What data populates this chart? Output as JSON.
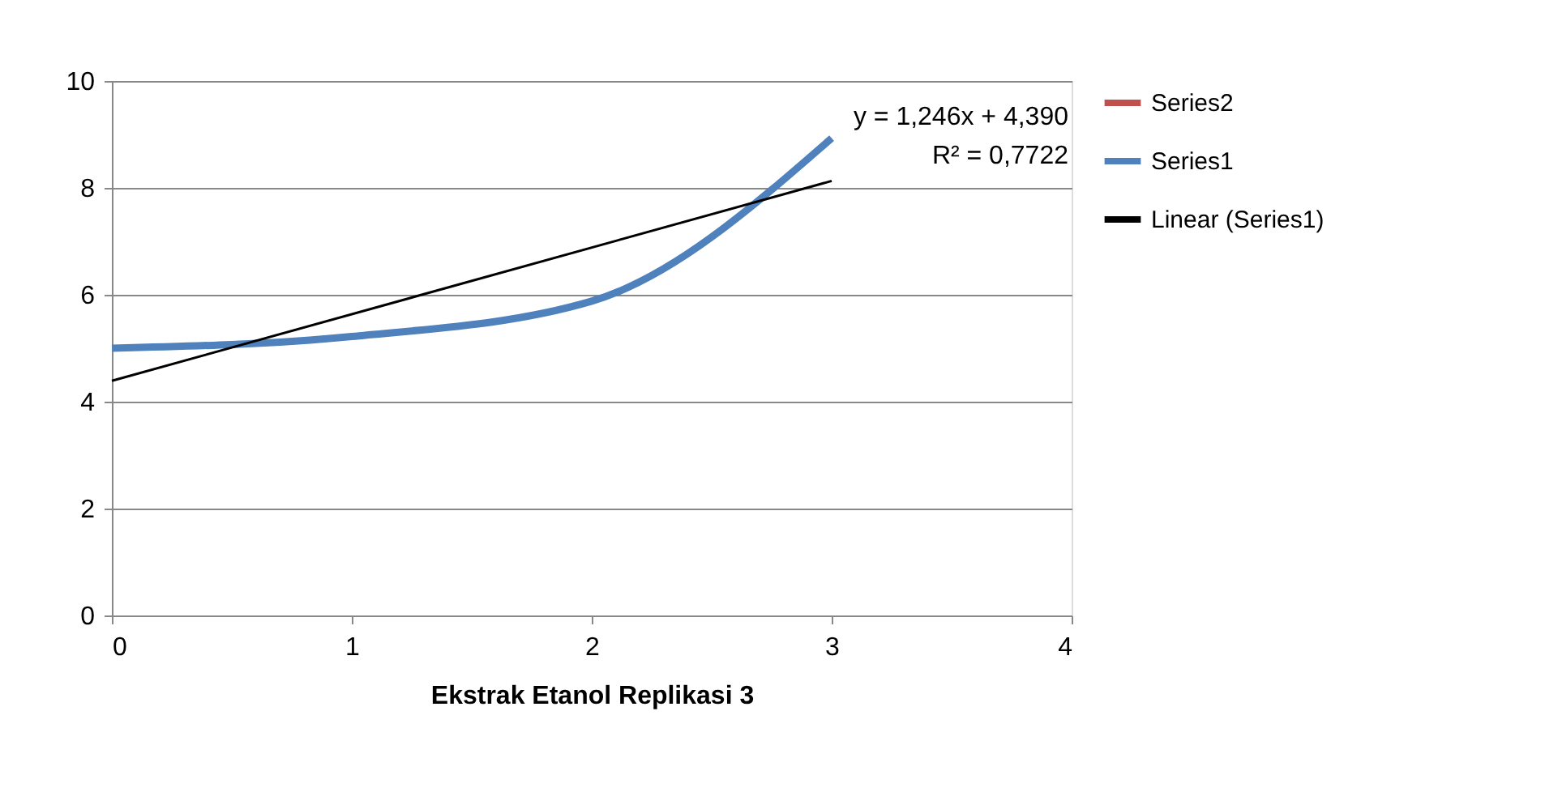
{
  "chart_data": {
    "type": "line",
    "xlabel": "Ekstrak Etanol Replikasi 3",
    "x": [
      0,
      1,
      2,
      3
    ],
    "series": [
      {
        "name": "Series2",
        "color": "#c0504d",
        "values": [
          null,
          null,
          null,
          null
        ]
      },
      {
        "name": "Series1",
        "color": "#4f81bd",
        "values": [
          5.0,
          5.22,
          5.88,
          8.93
        ]
      },
      {
        "name": "Linear (Series1)",
        "color": "#000000",
        "type": "line",
        "x": [
          0,
          3
        ],
        "values": [
          4.39,
          8.13
        ]
      }
    ],
    "xlim": [
      0,
      4
    ],
    "xticks": [
      0,
      1,
      2,
      3,
      4
    ],
    "ylim": [
      0,
      10
    ],
    "yticks": [
      0,
      2,
      4,
      6,
      8,
      10
    ],
    "grid": "y",
    "legend": "right",
    "marker": "none",
    "line_style": "solid",
    "annotations": [
      "y = 1,246x + 4,390",
      "R² = 0,7722"
    ]
  }
}
